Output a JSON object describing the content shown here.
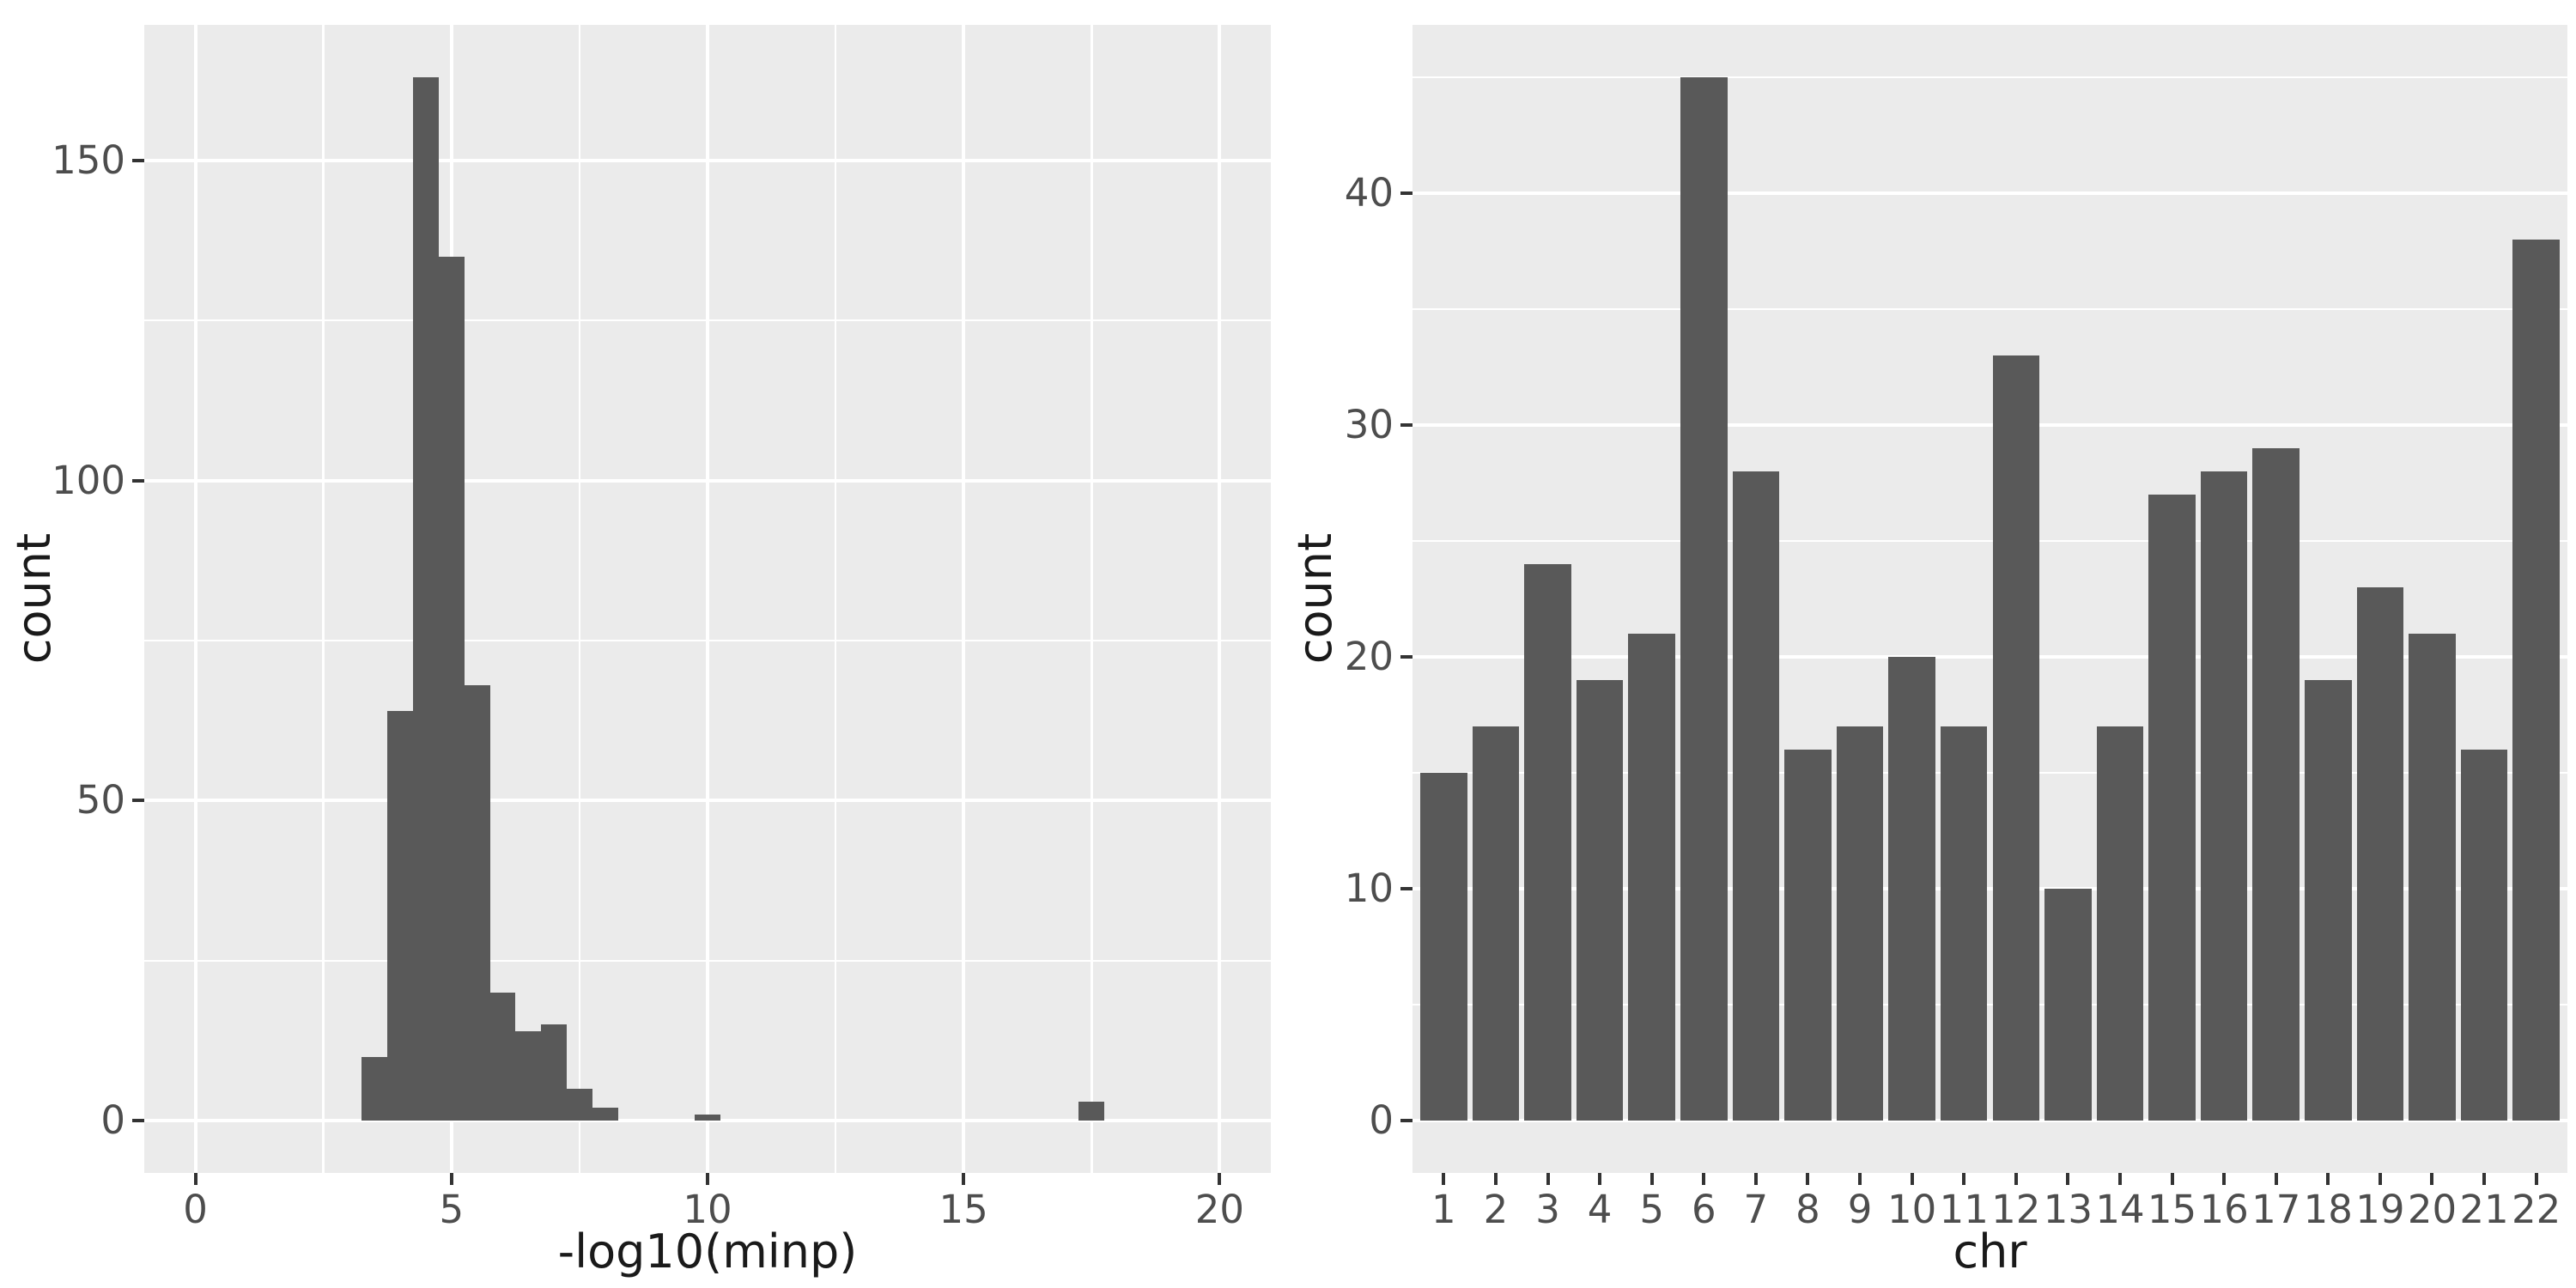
{
  "figure": {
    "background": "#FFFFFF",
    "panel_background": "#EBEBEB",
    "grid_color": "#FFFFFF",
    "bar_color": "#595959",
    "tick_text_color": "#4D4D4D",
    "axis_title_color": "#1A1A1A",
    "tick_mark_color": "#333333"
  },
  "chart_data": [
    {
      "id": "minp-histogram",
      "type": "bar",
      "subtype": "histogram",
      "title": "",
      "xlabel": "-log10(minp)",
      "ylabel": "count",
      "x_tick_labels": [
        "0",
        "5",
        "10",
        "15",
        "20"
      ],
      "x_tick_values": [
        0,
        5,
        10,
        15,
        20
      ],
      "x_minor_values": [
        2.5,
        7.5,
        12.5,
        17.5
      ],
      "y_tick_labels": [
        "0",
        "50",
        "100",
        "150"
      ],
      "y_tick_values": [
        0,
        50,
        100,
        150
      ],
      "y_minor_values": [
        25,
        75,
        125
      ],
      "xlim": [
        -1,
        21
      ],
      "ylim": [
        -8.15,
        171.15
      ],
      "grid": true,
      "legend": "none",
      "bin_width": 0.5,
      "bins": [
        {
          "center": 3.5,
          "count": 10
        },
        {
          "center": 4.0,
          "count": 64
        },
        {
          "center": 4.5,
          "count": 163
        },
        {
          "center": 5.0,
          "count": 135
        },
        {
          "center": 5.5,
          "count": 68
        },
        {
          "center": 6.0,
          "count": 20
        },
        {
          "center": 6.5,
          "count": 14
        },
        {
          "center": 7.0,
          "count": 15
        },
        {
          "center": 7.5,
          "count": 5
        },
        {
          "center": 8.0,
          "count": 2
        },
        {
          "center": 10.0,
          "count": 1
        },
        {
          "center": 17.5,
          "count": 3
        }
      ]
    },
    {
      "id": "chr-bar-chart",
      "type": "bar",
      "title": "",
      "xlabel": "chr",
      "ylabel": "count",
      "categories": [
        "1",
        "2",
        "3",
        "4",
        "5",
        "6",
        "7",
        "8",
        "9",
        "10",
        "11",
        "12",
        "13",
        "14",
        "15",
        "16",
        "17",
        "18",
        "19",
        "20",
        "21",
        "22"
      ],
      "values": [
        15,
        17,
        24,
        19,
        21,
        45,
        28,
        16,
        17,
        20,
        17,
        33,
        10,
        17,
        27,
        28,
        29,
        19,
        23,
        21,
        16,
        38
      ],
      "y_tick_labels": [
        "0",
        "10",
        "20",
        "30",
        "40"
      ],
      "y_tick_values": [
        0,
        10,
        20,
        30,
        40
      ],
      "y_minor_values": [
        5,
        15,
        25,
        35,
        45
      ],
      "xlim": [
        0.4,
        22.6
      ],
      "ylim": [
        -2.25,
        47.25
      ],
      "grid": true,
      "legend": "none",
      "bar_width": 0.9
    }
  ]
}
